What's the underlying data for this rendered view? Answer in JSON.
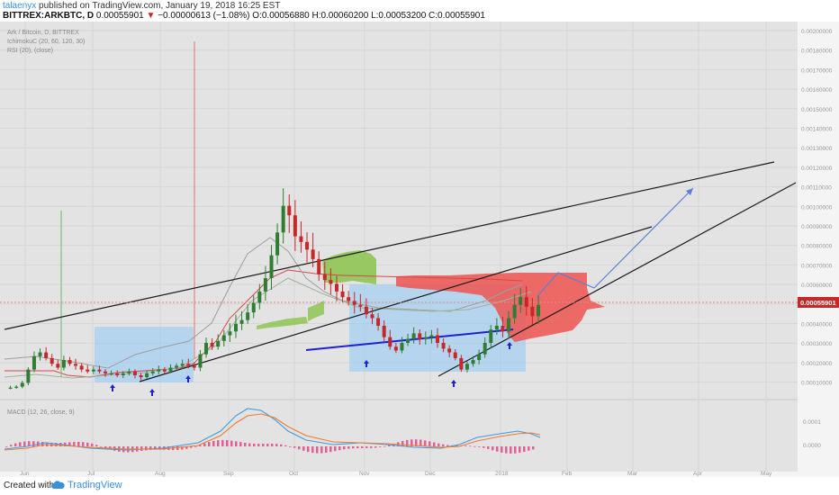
{
  "header": {
    "author": "talaenyx",
    "published": "published on TradingView.com, January 19, 2018 16:25 EST",
    "symbol": "BITTREX:ARKBTC, D",
    "price": "0.00055901",
    "change_arrow": "▼",
    "change": "−0.00000613 (−1.08%)",
    "open": "O:0.00056880",
    "high": "H:0.00060200",
    "low": "L:0.00053200",
    "close": "C:0.00055901"
  },
  "legend": {
    "title": "Ark / Bitcoin, D, BITTREX",
    "ichimoku": "IchimokuC (20, 60, 120, 30)",
    "rsi": "RSI (20), (close)"
  },
  "macd_label": "MACD (12, 26, close, 9)",
  "colors": {
    "up": "#2e7d32",
    "down": "#c62828",
    "cloud_green": "#8bc34a",
    "cloud_red": "#ef5350",
    "box": "#90caf9",
    "trend_blue": "#1e22cc",
    "projection": "#5c7fd6",
    "macd_line": "#3f9be0",
    "signal_line": "#f07a2e",
    "hist": "#e04a8a",
    "last_price_bg": "#c62828"
  },
  "chart_data": {
    "type": "candlestick",
    "y_axis_labels": [
      "0.00200000",
      "0.00180000",
      "0.00170000",
      "0.00160000",
      "0.00150000",
      "0.00140000",
      "0.00130000",
      "0.00120000",
      "0.00110000",
      "0.00100000",
      "0.00090000",
      "0.00080000",
      "0.00070000",
      "0.00060000",
      "0.00050000",
      "0.00040000",
      "0.00030000",
      "0.00020000",
      "0.00010000"
    ],
    "last_price_label": "0.00055901",
    "macd_axis_labels": [
      "0.0001",
      "0.0000"
    ],
    "x_axis_labels": [
      "Jun",
      "Jul",
      "Aug",
      "Sep",
      "Oct",
      "Nov",
      "Dec",
      "2018",
      "Feb",
      "Mar",
      "Apr",
      "May"
    ],
    "price_path": [
      0.000125,
      0.000125,
      0.00013,
      0.00015,
      0.00022,
      0.00029,
      0.00031,
      0.00028,
      0.00025,
      0.00023,
      0.00027,
      0.00025,
      0.00024,
      0.00022,
      0.00021,
      0.00022,
      0.00021,
      0.0002,
      0.0002,
      0.00019,
      0.0002,
      0.00021,
      0.00019,
      0.00018,
      0.0002,
      0.00021,
      0.00022,
      0.00021,
      0.00023,
      0.00024,
      0.00025,
      0.00024,
      0.00023,
      0.0003,
      0.00036,
      0.00034,
      0.00037,
      0.0004,
      0.00042,
      0.00046,
      0.00048,
      0.00052,
      0.00057,
      0.00063,
      0.0007,
      0.00082,
      0.00094,
      0.00108,
      0.00103,
      0.00092,
      0.00089,
      0.00085,
      0.0008,
      0.00072,
      0.00069,
      0.00067,
      0.00063,
      0.0006,
      0.00058,
      0.00056,
      0.00055,
      0.00051,
      0.00049,
      0.00045,
      0.00039,
      0.00034,
      0.00032,
      0.00036,
      0.00038,
      0.00041,
      0.00038,
      0.00039,
      0.0004,
      0.00036,
      0.00033,
      0.00031,
      0.00028,
      0.00022,
      0.00025,
      0.00027,
      0.0003,
      0.00036,
      0.00043,
      0.00045,
      0.00042,
      0.00049,
      0.00056,
      0.0006,
      0.00055,
      0.0005,
      0.000559
    ]
  }
}
